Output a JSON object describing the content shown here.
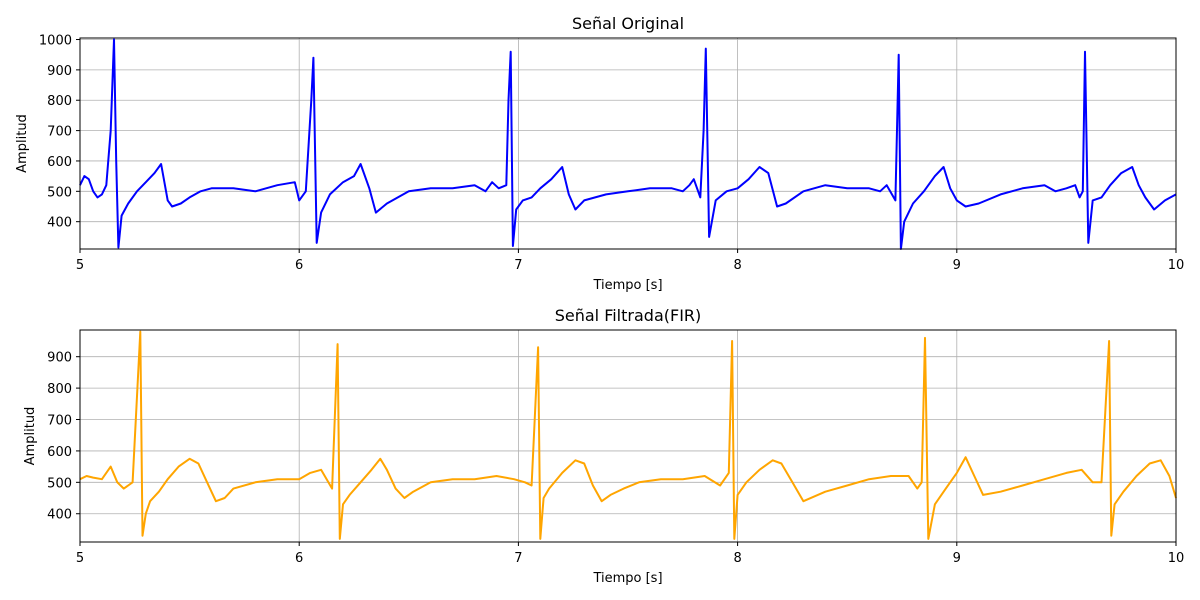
{
  "chart_data": [
    {
      "type": "line",
      "title": "Señal Original",
      "xlabel": "Tiempo [s]",
      "ylabel": "Amplitud",
      "xlim": [
        5,
        10
      ],
      "ylim": [
        310,
        1005
      ],
      "xticks": [
        5,
        6,
        7,
        8,
        9,
        10
      ],
      "yticks": [
        400,
        500,
        600,
        700,
        800,
        900,
        1000
      ],
      "grid": true,
      "color": "#0000ff",
      "series": [
        {
          "x": [
            5.0,
            5.02,
            5.04,
            5.06,
            5.08,
            5.1,
            5.12,
            5.14,
            5.155,
            5.165,
            5.175,
            5.19,
            5.22,
            5.26,
            5.3,
            5.34,
            5.37,
            5.4,
            5.42,
            5.46,
            5.5,
            5.55,
            5.6,
            5.7,
            5.8,
            5.9,
            5.98,
            6.0,
            6.03,
            6.055,
            6.065,
            6.08,
            6.1,
            6.14,
            6.2,
            6.25,
            6.28,
            6.32,
            6.35,
            6.4,
            6.5,
            6.6,
            6.7,
            6.8,
            6.85,
            6.88,
            6.91,
            6.945,
            6.955,
            6.965,
            6.975,
            6.99,
            7.02,
            7.06,
            7.1,
            7.15,
            7.2,
            7.23,
            7.26,
            7.3,
            7.4,
            7.5,
            7.6,
            7.7,
            7.75,
            7.78,
            7.8,
            7.83,
            7.845,
            7.855,
            7.87,
            7.9,
            7.95,
            8.0,
            8.05,
            8.1,
            8.14,
            8.18,
            8.22,
            8.3,
            8.4,
            8.5,
            8.6,
            8.65,
            8.68,
            8.72,
            8.735,
            8.745,
            8.76,
            8.8,
            8.85,
            8.9,
            8.94,
            8.97,
            9.0,
            9.04,
            9.1,
            9.2,
            9.3,
            9.4,
            9.45,
            9.5,
            9.54,
            9.56,
            9.575,
            9.585,
            9.6,
            9.62,
            9.66,
            9.7,
            9.75,
            9.8,
            9.83,
            9.86,
            9.9,
            9.95,
            10.0
          ],
          "values": [
            520,
            550,
            540,
            500,
            480,
            490,
            520,
            700,
            1000,
            600,
            315,
            420,
            460,
            500,
            530,
            560,
            590,
            470,
            450,
            460,
            480,
            500,
            510,
            510,
            500,
            520,
            530,
            470,
            500,
            800,
            940,
            330,
            430,
            490,
            530,
            550,
            590,
            510,
            430,
            460,
            500,
            510,
            510,
            520,
            500,
            530,
            510,
            520,
            800,
            960,
            320,
            440,
            470,
            480,
            510,
            540,
            580,
            490,
            440,
            470,
            490,
            500,
            510,
            510,
            500,
            520,
            540,
            480,
            700,
            970,
            350,
            470,
            500,
            510,
            540,
            580,
            560,
            450,
            460,
            500,
            520,
            510,
            510,
            500,
            520,
            470,
            950,
            300,
            400,
            460,
            500,
            550,
            580,
            510,
            470,
            450,
            460,
            490,
            510,
            520,
            500,
            510,
            520,
            480,
            500,
            960,
            330,
            470,
            480,
            520,
            560,
            580,
            520,
            480,
            440,
            470,
            490
          ]
        }
      ]
    },
    {
      "type": "line",
      "title": "Señal Filtrada(FIR)",
      "xlabel": "Tiempo [s]",
      "ylabel": "Amplitud",
      "xlim": [
        5,
        10
      ],
      "ylim": [
        310,
        985
      ],
      "xticks": [
        5,
        6,
        7,
        8,
        9,
        10
      ],
      "yticks": [
        400,
        500,
        600,
        700,
        800,
        900
      ],
      "grid": true,
      "color": "#ffa500",
      "series": [
        {
          "x": [
            5.0,
            5.03,
            5.06,
            5.1,
            5.14,
            5.17,
            5.2,
            5.24,
            5.275,
            5.285,
            5.3,
            5.32,
            5.36,
            5.4,
            5.45,
            5.5,
            5.54,
            5.58,
            5.62,
            5.66,
            5.7,
            5.8,
            5.9,
            6.0,
            6.05,
            6.1,
            6.15,
            6.175,
            6.185,
            6.2,
            6.23,
            6.28,
            6.33,
            6.37,
            6.4,
            6.44,
            6.48,
            6.52,
            6.6,
            6.7,
            6.8,
            6.9,
            6.98,
            7.03,
            7.06,
            7.09,
            7.1,
            7.115,
            7.14,
            7.2,
            7.26,
            7.3,
            7.34,
            7.38,
            7.42,
            7.48,
            7.55,
            7.65,
            7.75,
            7.85,
            7.92,
            7.96,
            7.975,
            7.985,
            8.0,
            8.04,
            8.1,
            8.16,
            8.2,
            8.25,
            8.3,
            8.4,
            8.5,
            8.6,
            8.7,
            8.78,
            8.82,
            8.84,
            8.855,
            8.87,
            8.9,
            8.95,
            9.0,
            9.04,
            9.08,
            9.12,
            9.2,
            9.3,
            9.4,
            9.5,
            9.57,
            9.62,
            9.66,
            9.695,
            9.705,
            9.72,
            9.76,
            9.82,
            9.88,
            9.93,
            9.97,
            10.0
          ],
          "values": [
            510,
            520,
            515,
            510,
            550,
            500,
            480,
            500,
            980,
            330,
            400,
            440,
            470,
            510,
            550,
            575,
            560,
            500,
            440,
            450,
            480,
            500,
            510,
            510,
            530,
            540,
            480,
            940,
            320,
            430,
            460,
            500,
            540,
            575,
            540,
            480,
            450,
            470,
            500,
            510,
            510,
            520,
            510,
            500,
            490,
            930,
            320,
            450,
            480,
            530,
            570,
            560,
            490,
            440,
            460,
            480,
            500,
            510,
            510,
            520,
            490,
            530,
            950,
            320,
            460,
            500,
            540,
            570,
            560,
            500,
            440,
            470,
            490,
            510,
            520,
            520,
            480,
            500,
            960,
            320,
            430,
            480,
            530,
            580,
            520,
            460,
            470,
            490,
            510,
            530,
            540,
            500,
            500,
            950,
            330,
            430,
            470,
            520,
            560,
            570,
            520,
            450
          ]
        }
      ]
    }
  ]
}
